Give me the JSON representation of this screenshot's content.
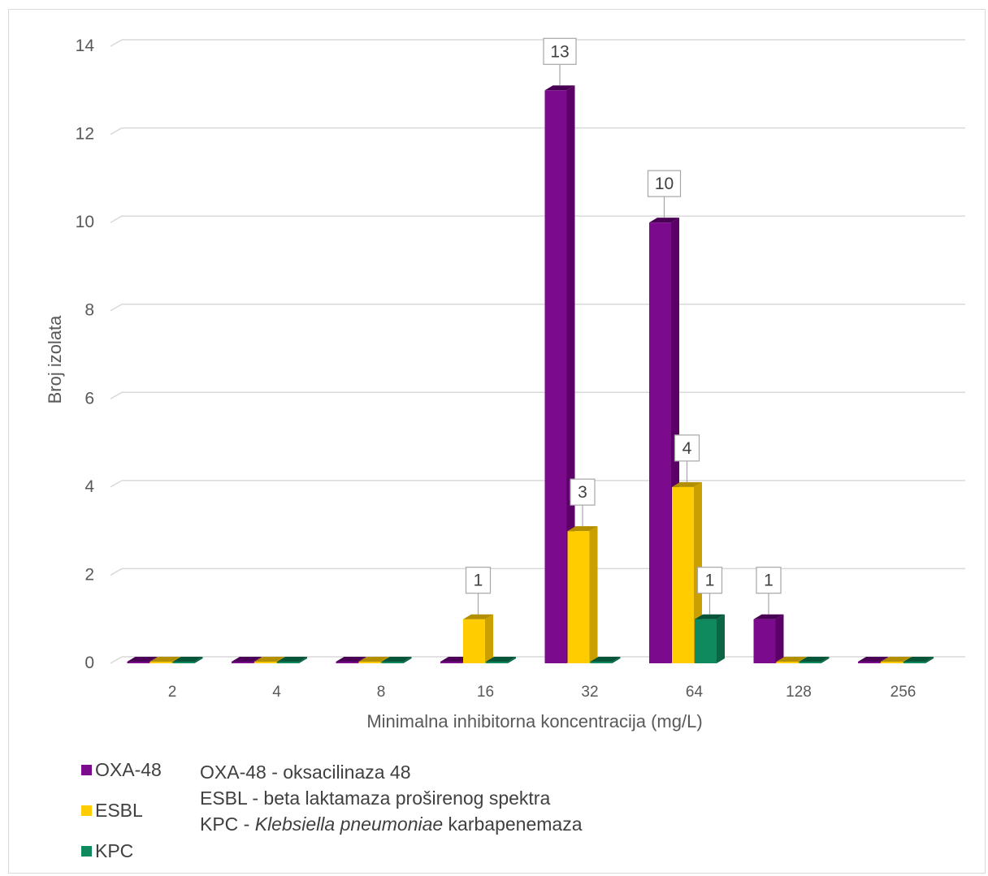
{
  "chart_data": {
    "type": "bar",
    "categories": [
      "2",
      "4",
      "8",
      "16",
      "32",
      "64",
      "128",
      "256"
    ],
    "series": [
      {
        "name": "OXA-48",
        "values": [
          0,
          0,
          0,
          0,
          13,
          10,
          1,
          0
        ],
        "color": "#7b0a8c",
        "side_color": "#5a0066",
        "top_color": "#4a0055"
      },
      {
        "name": "ESBL",
        "values": [
          0,
          0,
          0,
          1,
          3,
          4,
          0,
          0
        ],
        "color": "#ffcc00",
        "side_color": "#c9a000",
        "top_color": "#b38f00"
      },
      {
        "name": "KPC",
        "values": [
          0,
          0,
          0,
          0,
          0,
          1,
          0,
          0
        ],
        "color": "#0f8a5f",
        "side_color": "#0a6645",
        "top_color": "#075538"
      }
    ],
    "xlabel": "Minimalna inhibitorna koncentracija (mg/L)",
    "ylabel": "Broj izolata",
    "ylim": [
      0,
      14
    ],
    "yticks": [
      "0",
      "2",
      "4",
      "6",
      "8",
      "10",
      "12",
      "14"
    ],
    "data_labels": [
      {
        "category": "16",
        "series": "ESBL",
        "text": "1"
      },
      {
        "category": "32",
        "series": "OXA-48",
        "text": "13"
      },
      {
        "category": "32",
        "series": "ESBL",
        "text": "3"
      },
      {
        "category": "64",
        "series": "OXA-48",
        "text": "10"
      },
      {
        "category": "64",
        "series": "ESBL",
        "text": "4"
      },
      {
        "category": "64",
        "series": "KPC",
        "text": "1"
      },
      {
        "category": "128",
        "series": "OXA-48",
        "text": "1"
      }
    ],
    "grid": true,
    "legend_position": "bottom-left"
  },
  "legend": {
    "items": [
      {
        "label": "OXA-48",
        "color": "#7b0a8c"
      },
      {
        "label": "ESBL",
        "color": "#ffcc00"
      },
      {
        "label": "KPC",
        "color": "#0f8a5f"
      }
    ]
  },
  "notes": {
    "line1": "OXA-48 - oksacilinaza 48",
    "line2": "ESBL - beta laktamaza proširenog spektra",
    "line3_prefix": "KPC - ",
    "line3_italic": "Klebsiella pneumoniae",
    "line3_suffix": " karbapenemaza"
  }
}
